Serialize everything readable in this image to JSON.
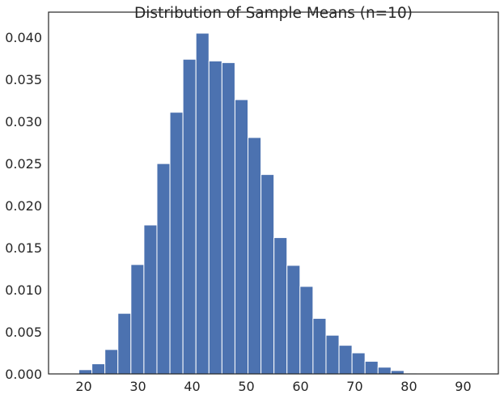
{
  "chart_data": {
    "type": "bar",
    "title": "Distribution of Sample Means (n=10)",
    "xlabel": "",
    "ylabel": "",
    "xlim": [
      13.5,
      96.5
    ],
    "ylim": [
      0,
      0.043
    ],
    "x_ticks": [
      20,
      30,
      40,
      50,
      60,
      70,
      80,
      90
    ],
    "x_tick_labels": [
      "20",
      "30",
      "40",
      "50",
      "60",
      "70",
      "80",
      "90"
    ],
    "y_ticks": [
      0,
      0.005,
      0.01,
      0.015,
      0.02,
      0.025,
      0.03,
      0.035,
      0.04
    ],
    "y_tick_labels": [
      "0.000",
      "0.005",
      "0.010",
      "0.015",
      "0.020",
      "0.025",
      "0.030",
      "0.035",
      "0.040"
    ],
    "bin_edges": [
      19.1,
      21.5,
      23.9,
      26.3,
      28.7,
      31.1,
      33.5,
      35.9,
      38.3,
      40.7,
      43.1,
      45.5,
      47.9,
      50.3,
      52.7,
      55.1,
      57.5,
      59.9,
      62.3,
      64.7,
      67.1,
      69.5,
      71.9,
      74.3,
      76.7,
      79.1,
      81.5,
      83.9,
      86.3,
      88.7,
      91.1
    ],
    "values": [
      0.0005,
      0.0012,
      0.0029,
      0.0072,
      0.013,
      0.0177,
      0.025,
      0.0311,
      0.0374,
      0.0405,
      0.0372,
      0.037,
      0.0326,
      0.0281,
      0.0237,
      0.0162,
      0.0129,
      0.0104,
      0.0066,
      0.0046,
      0.0034,
      0.0025,
      0.0015,
      0.0008,
      0.0004,
      0.0001,
      5e-05,
      3e-05,
      3e-05,
      2e-05
    ],
    "bar_color": "#4c72b0",
    "grid": false,
    "legend": "none"
  }
}
